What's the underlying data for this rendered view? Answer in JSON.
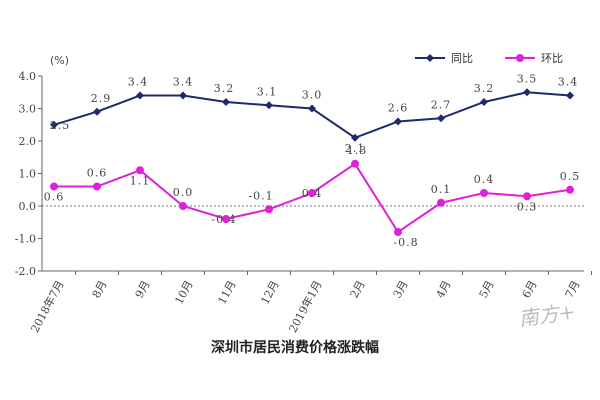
{
  "chart_data": {
    "type": "line",
    "title": "深圳市居民消费价格涨跌幅",
    "unit_label": "(%)",
    "categories": [
      "2018年7月",
      "8月",
      "9月",
      "10月",
      "11月",
      "12月",
      "2019年1月",
      "2月",
      "3月",
      "4月",
      "5月",
      "6月",
      "7月"
    ],
    "ylim": [
      -2.0,
      4.0
    ],
    "yticks": [
      "4.0",
      "3.0",
      "2.0",
      "1.0",
      "0.0",
      "-1.0",
      "-2.0"
    ],
    "ytick_values": [
      4.0,
      3.0,
      2.0,
      1.0,
      0.0,
      -1.0,
      -2.0
    ],
    "legend_position": "top-right",
    "zero_line": "dashed",
    "series": [
      {
        "name": "同比",
        "color": "#1f2a6b",
        "marker": "diamond",
        "values": [
          2.5,
          2.9,
          3.4,
          3.4,
          3.2,
          3.1,
          3.0,
          2.1,
          2.6,
          2.7,
          3.2,
          3.5,
          3.4
        ],
        "labels": [
          "2.5",
          "2.9",
          "3.4",
          "3.4",
          "3.2",
          "3.1",
          "3.0",
          "2.1",
          "2.6",
          "2.7",
          "3.2",
          "3.5",
          "3.4"
        ]
      },
      {
        "name": "环比",
        "color": "#e020d8",
        "marker": "circle",
        "values": [
          0.6,
          0.6,
          1.1,
          0.0,
          -0.4,
          -0.1,
          0.4,
          1.3,
          -0.8,
          0.1,
          0.4,
          0.3,
          0.5
        ],
        "labels": [
          "0.6",
          "0.6",
          "1.1",
          "0.0",
          "-0.4",
          "-0.1",
          "0.4",
          "1.3",
          "-0.8",
          "0.1",
          "0.4",
          "0.3",
          "0.5"
        ]
      }
    ]
  },
  "watermark_text": "南方+"
}
